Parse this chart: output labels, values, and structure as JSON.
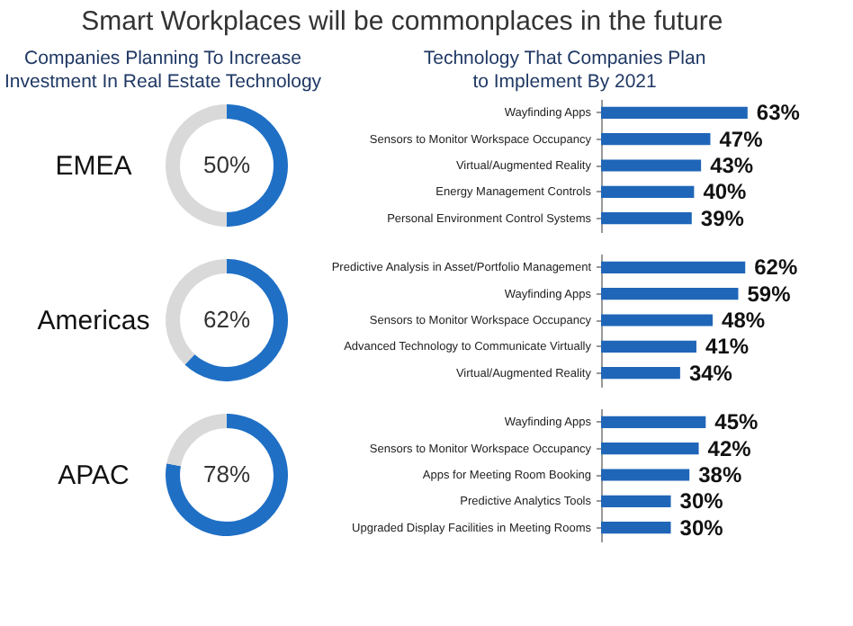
{
  "chart_data": [
    {
      "type": "donut",
      "title": "Smart Workplaces will be commonplaces in the future",
      "subtitle": "Companies Planning To Increase\nInvestment In Real Estate Technology",
      "ylabel": "EMEA",
      "categories": [
        null,
        null
      ],
      "values": [
        50,
        50
      ],
      "colors": [
        "#1f6fc5",
        "#d9d9d9"
      ],
      "value_labels": [
        "50%",
        null
      ]
    },
    {
      "type": "bar",
      "orientation": "horizontal",
      "title": "Technology That Companies Plan\nto Implement By 2021",
      "categories": [
        "Wayfinding Apps",
        "Sensors to Monitor Workspace Occupancy",
        "Virtual/Augmented Reality",
        "Energy Management Controls",
        "Personal Environment Control Systems"
      ],
      "values": [
        63,
        47,
        43,
        40,
        39
      ],
      "color": "#1f66b8",
      "value_labels": [
        "63%",
        "47%",
        "43%",
        "40%",
        "39%"
      ]
    },
    {
      "type": "donut",
      "ylabel": "Americas",
      "categories": [
        null,
        null
      ],
      "values": [
        62,
        38
      ],
      "colors": [
        "#1f6fc5",
        "#d9d9d9"
      ],
      "value_labels": [
        "62%",
        null
      ]
    },
    {
      "type": "bar",
      "orientation": "horizontal",
      "categories": [
        "Predictive Analysis in Asset/Portfolio Management",
        "Wayfinding Apps",
        "Sensors to Monitor Workspace Occupancy",
        "Advanced Technology to Communicate Virtually",
        "Virtual/Augmented Reality"
      ],
      "values": [
        62,
        59,
        48,
        41,
        34
      ],
      "color": "#1f66b8",
      "value_labels": [
        "62%",
        "59%",
        "48%",
        "41%",
        "34%"
      ]
    },
    {
      "type": "donut",
      "ylabel": "APAC",
      "categories": [
        null,
        null
      ],
      "values": [
        78,
        22
      ],
      "colors": [
        "#1f6fc5",
        "#d9d9d9"
      ],
      "value_labels": [
        "78%",
        null
      ]
    },
    {
      "type": "bar",
      "orientation": "horizontal",
      "categories": [
        "Wayfinding Apps",
        "Sensors to Monitor Workspace Occupancy",
        "Apps for Meeting Room Booking",
        "Predictive Analytics Tools",
        "Upgraded Display Facilities in Meeting Rooms"
      ],
      "values": [
        45,
        42,
        38,
        30,
        30
      ],
      "color": "#1f66b8",
      "value_labels": [
        "45%",
        "42%",
        "38%",
        "30%",
        "30%"
      ]
    }
  ]
}
